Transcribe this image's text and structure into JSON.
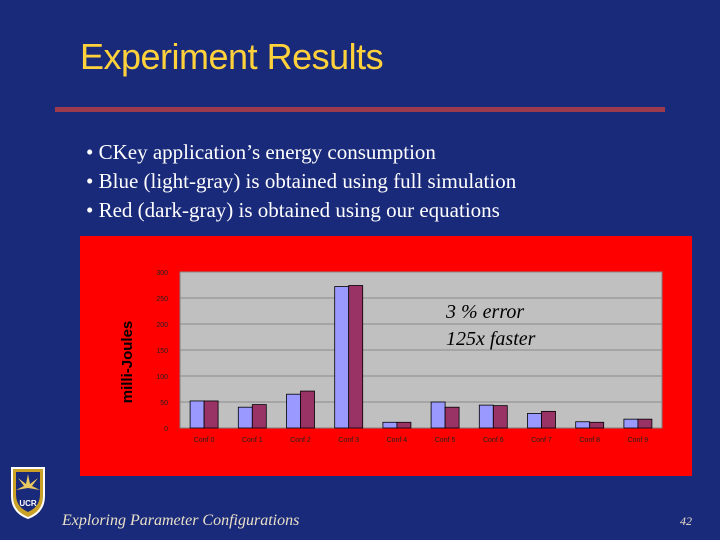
{
  "slide": {
    "title": "Experiment Results",
    "bullets": [
      "• CKey application’s energy consumption",
      "• Blue (light-gray) is obtained using full simulation",
      "• Red (dark-gray) is obtained using our equations"
    ],
    "footer": "Exploring Parameter Configurations",
    "page_number": "42",
    "logo_text": "UCR"
  },
  "colors": {
    "background": "#1a2a7a",
    "title": "#ffd23c",
    "panel": "#ff0000",
    "plot_area": "#c0c0c0",
    "series_full": "#9999ff",
    "series_eq": "#993366",
    "annotation": "#000000"
  },
  "chart_data": {
    "type": "bar",
    "ylabel": "milli-Joules",
    "xlabel": "",
    "ylim": [
      0,
      300
    ],
    "yticks": [
      0,
      50,
      100,
      150,
      200,
      250,
      300
    ],
    "ytick_labels": [
      "0",
      "50",
      "100",
      "150",
      "200",
      "250",
      "300"
    ],
    "categories": [
      "Conf 0",
      "Conf 1",
      "Conf 2",
      "Conf 3",
      "Conf 4",
      "Conf 5",
      "Conf 6",
      "Conf 7",
      "Conf 8",
      "Conf 9"
    ],
    "series": [
      {
        "values": [
          52,
          40,
          65,
          272,
          11,
          50,
          44,
          28,
          12,
          17
        ]
      },
      {
        "values": [
          52,
          45,
          71,
          274,
          11,
          40,
          43,
          32,
          11,
          17
        ]
      }
    ],
    "grid": true,
    "legend": "none",
    "annotations": [
      "3 % error",
      "125x faster"
    ]
  }
}
